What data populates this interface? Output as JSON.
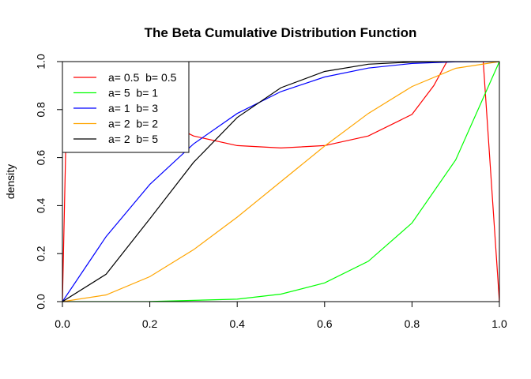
{
  "chart_data": {
    "type": "line",
    "title": "The Beta Cumulative Distribution Function",
    "xlabel": "",
    "ylabel": "density",
    "xlim": [
      0,
      1
    ],
    "ylim": [
      0,
      1
    ],
    "xticks": [
      "0.0",
      "0.2",
      "0.4",
      "0.6",
      "0.8",
      "1.0"
    ],
    "yticks": [
      "0.0",
      "0.2",
      "0.4",
      "0.6",
      "0.8",
      "1.0"
    ],
    "legend_position": "top-left",
    "grid": false,
    "series": [
      {
        "name": "a= 0.5  b= 0.5",
        "color": "#ff0000",
        "x": [
          0,
          0.02,
          0.05,
          0.1,
          0.2,
          0.3,
          0.4,
          0.5,
          0.6,
          0.7,
          0.8,
          0.85,
          0.88,
          0.9,
          0.95,
          1.0
        ],
        "y": [
          0.0,
          1.7,
          1.35,
          1.02,
          0.78,
          0.69,
          0.65,
          0.64,
          0.65,
          0.69,
          0.78,
          0.9,
          1.0,
          1.06,
          1.35,
          0.0
        ]
      },
      {
        "name": "a= 5  b= 1",
        "color": "#00ff00",
        "x": [
          0,
          0.2,
          0.4,
          0.5,
          0.6,
          0.7,
          0.8,
          0.9,
          1.0
        ],
        "y": [
          0.0,
          0.0003,
          0.0102,
          0.0313,
          0.0778,
          0.1681,
          0.3277,
          0.5905,
          1.0
        ]
      },
      {
        "name": "a= 1  b= 3",
        "color": "#0000ff",
        "x": [
          0,
          0.1,
          0.2,
          0.3,
          0.4,
          0.5,
          0.6,
          0.7,
          0.8,
          0.9,
          1.0
        ],
        "y": [
          0.0,
          0.271,
          0.488,
          0.657,
          0.784,
          0.875,
          0.936,
          0.973,
          0.992,
          0.999,
          1.0
        ]
      },
      {
        "name": "a= 2  b= 2",
        "color": "#ffa500",
        "x": [
          0,
          0.1,
          0.2,
          0.3,
          0.4,
          0.5,
          0.6,
          0.7,
          0.8,
          0.9,
          1.0
        ],
        "y": [
          0.0,
          0.028,
          0.104,
          0.216,
          0.352,
          0.5,
          0.648,
          0.784,
          0.896,
          0.972,
          1.0
        ]
      },
      {
        "name": "a= 2  b= 5",
        "color": "#000000",
        "x": [
          0,
          0.1,
          0.2,
          0.3,
          0.4,
          0.5,
          0.6,
          0.7,
          0.8,
          0.9,
          1.0
        ],
        "y": [
          0.0,
          0.114,
          0.345,
          0.58,
          0.767,
          0.891,
          0.959,
          0.989,
          0.998,
          1.0,
          1.0
        ]
      }
    ]
  }
}
